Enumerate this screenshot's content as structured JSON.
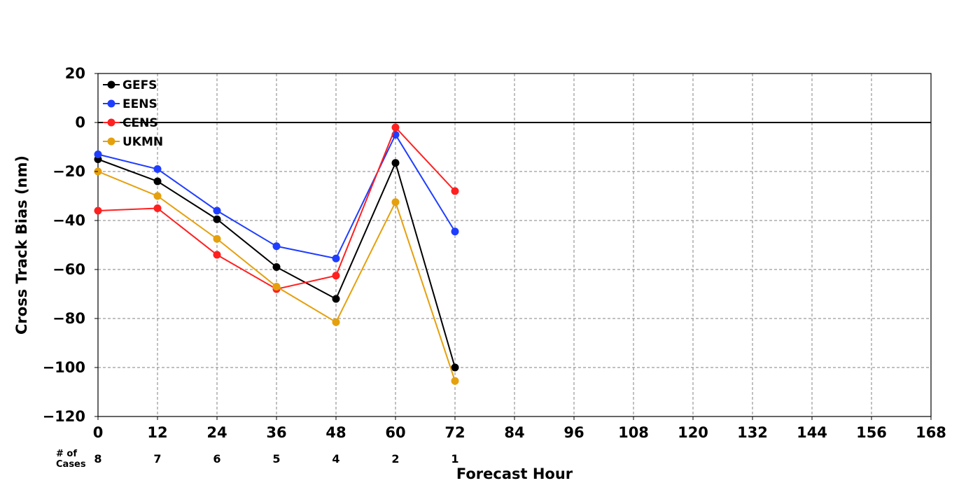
{
  "chart_data": {
    "type": "line",
    "xlabel": "Forecast Hour",
    "ylabel": "Cross Track Bias (nm)",
    "xlim": [
      0,
      168
    ],
    "ylim": [
      -120,
      20
    ],
    "x_ticks": [
      0,
      12,
      24,
      36,
      48,
      60,
      72,
      84,
      96,
      108,
      120,
      132,
      144,
      156,
      168
    ],
    "y_ticks": [
      20,
      0,
      -20,
      -40,
      -60,
      -80,
      -100,
      -120
    ],
    "y_tick_labels": [
      "20",
      "0",
      "−20",
      "−40",
      "−60",
      "−80",
      "−100",
      "−120"
    ],
    "grid": true,
    "zero_line": 0,
    "legend_position": "top-left",
    "cases_label": "# of\nCases",
    "cases": [
      {
        "x": 0,
        "n": "8"
      },
      {
        "x": 12,
        "n": "7"
      },
      {
        "x": 24,
        "n": "6"
      },
      {
        "x": 36,
        "n": "5"
      },
      {
        "x": 48,
        "n": "4"
      },
      {
        "x": 60,
        "n": "2"
      },
      {
        "x": 72,
        "n": "1"
      }
    ],
    "series": [
      {
        "name": "GEFS",
        "color": "#000000",
        "x": [
          0,
          12,
          24,
          36,
          48,
          60,
          72
        ],
        "values": [
          -15,
          -24,
          -39.5,
          -59,
          -72,
          -16.5,
          -100
        ]
      },
      {
        "name": "EENS",
        "color": "#1f3dff",
        "x": [
          0,
          12,
          24,
          36,
          48,
          60,
          72
        ],
        "values": [
          -13,
          -19,
          -36,
          -50.5,
          -55.5,
          -5,
          -44.5
        ]
      },
      {
        "name": "CENS",
        "color": "#ff2020",
        "x": [
          0,
          12,
          24,
          36,
          48,
          60,
          72
        ],
        "values": [
          -36,
          -35,
          -54,
          -68,
          -62.5,
          -2,
          -28
        ]
      },
      {
        "name": "UKMN",
        "color": "#e5a00d",
        "x": [
          0,
          12,
          24,
          36,
          48,
          60,
          72
        ],
        "values": [
          -20,
          -30,
          -47.5,
          -67,
          -81.5,
          -32.5,
          -105.5
        ]
      }
    ]
  }
}
